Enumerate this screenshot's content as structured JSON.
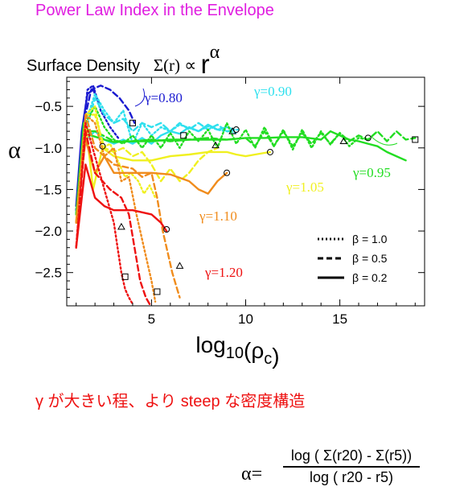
{
  "heading": "Power Law Index in the Envelope",
  "subtitle": {
    "label": "Surface Density",
    "sigma": "Σ(r) ∝ ",
    "r": "r",
    "power": "α"
  },
  "note": "γ が大きい程、より steep な密度構造",
  "formula": {
    "lhs": "α=",
    "numerator": "log ( Σ(r20) - Σ(r5))",
    "denominator": "log ( r20 - r5)"
  },
  "chart_data": {
    "type": "line",
    "xlabel": "log10(ρc)",
    "ylabel": "α",
    "xlim": [
      0.5,
      19.5
    ],
    "ylim": [
      -2.9,
      -0.15
    ],
    "xticks": [
      5,
      10,
      15
    ],
    "yticks": [
      -0.5,
      -1.0,
      -1.5,
      -2.0,
      -2.5
    ],
    "legend": {
      "placement": "bottom-right",
      "entries": [
        {
          "style": "dotted",
          "label": "β = 1.0"
        },
        {
          "style": "dashed",
          "label": "β = 0.5"
        },
        {
          "style": "solid",
          "label": "β = 0.2"
        }
      ]
    },
    "annotations": [
      {
        "text": "γ=0.80",
        "color": "#1a1ad0"
      },
      {
        "text": "γ=0.90",
        "color": "#2ee0ee"
      },
      {
        "text": "γ=0.95",
        "color": "#22dd22"
      },
      {
        "text": "γ=1.05",
        "color": "#f0f020"
      },
      {
        "text": "γ=1.10",
        "color": "#f08c1c"
      },
      {
        "text": "γ=1.20",
        "color": "#ee1111"
      }
    ],
    "series": [
      {
        "gamma": "0.80",
        "beta": "1.0",
        "style": "dotted",
        "color": "#1a1ad0",
        "x": [
          1.0,
          1.3,
          1.6,
          1.9,
          2.3,
          2.8,
          3.3
        ],
        "y": [
          -1.75,
          -0.9,
          -0.3,
          -0.25,
          -0.55,
          -0.75,
          -0.9
        ]
      },
      {
        "gamma": "0.80",
        "beta": "0.5",
        "style": "dashed",
        "color": "#1a1ad0",
        "x": [
          1.0,
          1.4,
          1.8,
          2.3,
          2.8,
          3.3,
          3.8,
          4.1
        ],
        "y": [
          -1.8,
          -0.7,
          -0.3,
          -0.25,
          -0.3,
          -0.4,
          -0.55,
          -0.7
        ]
      },
      {
        "gamma": "0.80",
        "beta": "0.2",
        "style": "solid",
        "color": "#1a1ad0",
        "x": [
          1.0,
          1.3,
          1.6,
          1.9,
          2.2
        ],
        "y": [
          -1.7,
          -0.8,
          -0.35,
          -0.3,
          -0.45
        ]
      },
      {
        "gamma": "0.90",
        "beta": "1.0",
        "style": "dotted",
        "color": "#2ee0ee",
        "x": [
          1.0,
          1.5,
          2.0,
          2.5,
          3.0,
          3.5,
          4.0,
          4.5,
          5.0,
          5.5,
          6.0,
          6.5,
          7.0,
          7.5,
          8.0,
          8.5,
          9.0,
          9.5
        ],
        "y": [
          -1.8,
          -0.7,
          -0.35,
          -0.55,
          -0.7,
          -0.55,
          -0.95,
          -0.7,
          -0.85,
          -0.75,
          -0.8,
          -0.72,
          -0.76,
          -0.8,
          -0.74,
          -0.78,
          -0.8,
          -0.82
        ]
      },
      {
        "gamma": "0.90",
        "beta": "0.5",
        "style": "dashed",
        "color": "#2ee0ee",
        "x": [
          1.0,
          1.5,
          2.0,
          2.5,
          3.0,
          3.5,
          4.0,
          4.5,
          5.0,
          5.5,
          6.0,
          6.5,
          7.0,
          7.5,
          8.0,
          8.5,
          9.0,
          9.6
        ],
        "y": [
          -1.8,
          -0.8,
          -0.4,
          -0.6,
          -0.7,
          -0.65,
          -0.8,
          -0.7,
          -0.75,
          -0.7,
          -0.8,
          -0.7,
          -0.78,
          -0.7,
          -0.78,
          -0.72,
          -0.8,
          -0.78
        ]
      },
      {
        "gamma": "0.90",
        "beta": "0.2",
        "style": "solid",
        "color": "#2ee0ee",
        "x": [
          1.0,
          1.5,
          2.0,
          2.5,
          3.0,
          3.5,
          4.0,
          4.5,
          5.0,
          5.5,
          6.0,
          6.5,
          7.0,
          7.5,
          8.0,
          8.5,
          9.0,
          9.4
        ],
        "y": [
          -1.8,
          -0.9,
          -0.8,
          -0.9,
          -0.95,
          -0.9,
          -0.95,
          -0.88,
          -0.95,
          -0.85,
          -0.8,
          -0.83,
          -0.75,
          -0.8,
          -0.72,
          -0.78,
          -0.75,
          -0.78
        ]
      },
      {
        "gamma": "0.95",
        "beta": "1.0",
        "style": "dotted",
        "color": "#22dd22",
        "x": [
          1.0,
          1.5,
          2.0,
          2.5,
          3.0,
          3.5,
          4.0,
          4.5,
          5.0,
          5.5,
          6.0,
          6.5,
          7.0,
          7.5,
          8.0,
          8.5,
          9.0,
          9.5,
          10.0,
          10.5,
          11.0,
          11.5,
          12.0,
          12.5,
          13.0,
          13.5,
          14.0,
          14.5,
          15.0,
          15.5,
          16.0,
          16.5
        ],
        "y": [
          -1.8,
          -0.7,
          -0.5,
          -0.75,
          -0.9,
          -0.95,
          -0.85,
          -1.0,
          -0.85,
          -1.0,
          -0.82,
          -1.0,
          -0.8,
          -0.92,
          -0.78,
          -1.0,
          -0.7,
          -0.95,
          -0.78,
          -1.0,
          -0.75,
          -0.98,
          -0.78,
          -1.02,
          -0.78,
          -1.0,
          -0.8,
          -0.96,
          -0.82,
          -0.98,
          -0.88,
          -0.9
        ]
      },
      {
        "gamma": "0.95",
        "beta": "0.5",
        "style": "dashed",
        "color": "#22dd22",
        "x": [
          1.0,
          1.5,
          2.0,
          3.0,
          4.0,
          5.0,
          6.0,
          7.0,
          8.0,
          9.0,
          10.0,
          10.5,
          11.0,
          11.5,
          12.0,
          12.5,
          13.0,
          13.5,
          14.0,
          14.5,
          15.0,
          15.5,
          16.0,
          16.5,
          17.0,
          17.5,
          18.0,
          18.5,
          19.0
        ],
        "y": [
          -1.8,
          -0.8,
          -0.8,
          -0.92,
          -0.92,
          -0.9,
          -0.92,
          -0.9,
          -0.88,
          -0.9,
          -0.88,
          -0.98,
          -0.8,
          -0.98,
          -0.8,
          -0.98,
          -0.82,
          -0.95,
          -0.82,
          -0.95,
          -0.82,
          -0.92,
          -0.85,
          -0.9,
          -0.8,
          -0.92,
          -0.8,
          -0.9,
          -0.88
        ]
      },
      {
        "gamma": "0.95",
        "beta": "0.2",
        "style": "solid",
        "color": "#22dd22",
        "x": [
          1.0,
          1.4,
          1.8,
          2.5,
          3.0,
          4.0,
          5.0,
          6.0,
          7.0,
          8.0,
          9.0,
          10.0,
          11.0,
          12.0,
          13.0,
          14.0,
          14.5,
          15.0,
          15.5,
          16.0,
          16.5,
          17.0,
          17.5,
          18.0,
          18.5
        ],
        "y": [
          -1.8,
          -0.7,
          -0.85,
          -0.9,
          -0.93,
          -0.92,
          -0.92,
          -0.9,
          -0.9,
          -0.9,
          -0.9,
          -0.88,
          -0.88,
          -0.87,
          -0.87,
          -0.9,
          -0.8,
          -0.85,
          -0.9,
          -0.92,
          -0.95,
          -0.98,
          -1.05,
          -1.1,
          -1.15
        ]
      },
      {
        "gamma": "1.05",
        "beta": "1.0",
        "style": "dotted",
        "color": "#f0f020",
        "x": [
          1.0,
          1.5,
          2.0,
          2.4,
          2.8,
          3.3,
          3.6,
          3.9,
          4.3,
          4.6,
          4.9,
          5.2
        ],
        "y": [
          -1.9,
          -0.6,
          -0.5,
          -1.0,
          -0.95,
          -1.2,
          -1.35,
          -1.3,
          -1.4,
          -1.55,
          -1.45,
          -1.6
        ]
      },
      {
        "gamma": "1.05",
        "beta": "0.5",
        "style": "dashed",
        "color": "#f0f020",
        "x": [
          1.0,
          1.5,
          2.0,
          2.5,
          3.0,
          3.5,
          4.0,
          4.5,
          5.0,
          5.5,
          6.0,
          6.5,
          7.0,
          7.5,
          8.0,
          8.5
        ],
        "y": [
          -1.9,
          -0.6,
          -0.6,
          -1.0,
          -1.05,
          -1.0,
          -1.1,
          -1.05,
          -1.2,
          -1.4,
          -1.25,
          -1.4,
          -1.3,
          -1.15,
          -1.05,
          -1.0
        ]
      },
      {
        "gamma": "1.05",
        "beta": "0.2",
        "style": "solid",
        "color": "#f0f020",
        "x": [
          1.0,
          1.5,
          1.9,
          2.4,
          3.0,
          4.0,
          5.0,
          6.0,
          7.0,
          8.0,
          9.0,
          9.5,
          10.0,
          10.5,
          11.0,
          11.3
        ],
        "y": [
          -1.9,
          -0.7,
          -1.5,
          -1.0,
          -1.1,
          -1.15,
          -1.15,
          -1.1,
          -1.08,
          -1.05,
          -1.05,
          -1.08,
          -1.1,
          -1.08,
          -1.06,
          -1.05
        ]
      },
      {
        "gamma": "1.10",
        "beta": "1.0",
        "style": "dotted",
        "color": "#f08c1c",
        "x": [
          1.0,
          1.5,
          2.0,
          2.5,
          3.0,
          3.4,
          3.8,
          4.2,
          4.6,
          5.0,
          5.2
        ],
        "y": [
          -1.9,
          -0.6,
          -0.7,
          -1.1,
          -1.0,
          -1.4,
          -1.35,
          -1.8,
          -2.2,
          -2.6,
          -2.85
        ]
      },
      {
        "gamma": "1.10",
        "beta": "0.5",
        "style": "dashed",
        "color": "#f08c1c",
        "x": [
          1.0,
          1.5,
          2.0,
          3.0,
          4.0,
          4.5,
          5.0,
          5.3,
          5.6,
          5.9,
          6.1,
          6.3,
          6.5
        ],
        "y": [
          -1.9,
          -0.6,
          -1.0,
          -1.2,
          -1.25,
          -1.35,
          -1.3,
          -1.6,
          -2.0,
          -2.3,
          -2.5,
          -2.65,
          -2.8
        ]
      },
      {
        "gamma": "1.10",
        "beta": "0.2",
        "style": "solid",
        "color": "#f08c1c",
        "x": [
          1.0,
          1.5,
          2.0,
          2.5,
          3.0,
          4.0,
          5.0,
          6.0,
          7.0,
          7.5,
          8.0,
          8.5,
          9.0
        ],
        "y": [
          -1.9,
          -0.9,
          -1.3,
          -1.1,
          -1.3,
          -1.3,
          -1.3,
          -1.32,
          -1.4,
          -1.5,
          -1.55,
          -1.4,
          -1.3
        ]
      },
      {
        "gamma": "1.20",
        "beta": "1.0",
        "style": "dotted",
        "color": "#ee1111",
        "x": [
          1.0,
          1.5,
          2.0,
          2.5,
          3.0,
          3.2,
          3.4,
          3.6,
          3.8,
          4.0
        ],
        "y": [
          -2.2,
          -0.7,
          -1.1,
          -1.5,
          -1.9,
          -2.2,
          -2.5,
          -2.7,
          -2.8,
          -2.88
        ]
      },
      {
        "gamma": "1.20",
        "beta": "0.5",
        "style": "dashed",
        "color": "#ee1111",
        "x": [
          1.0,
          1.5,
          2.0,
          2.8,
          3.4,
          3.8,
          4.1,
          4.4,
          4.7,
          4.9
        ],
        "y": [
          -2.2,
          -0.8,
          -1.3,
          -1.5,
          -1.6,
          -1.8,
          -2.2,
          -2.6,
          -2.8,
          -2.88
        ]
      },
      {
        "gamma": "1.20",
        "beta": "0.2",
        "style": "solid",
        "color": "#ee1111",
        "x": [
          1.0,
          1.5,
          2.0,
          2.5,
          3.0,
          4.0,
          5.0,
          5.5,
          5.8
        ],
        "y": [
          -2.2,
          -1.2,
          -1.6,
          -1.7,
          -1.75,
          -1.75,
          -1.8,
          -1.9,
          -2.0
        ]
      }
    ],
    "markers": [
      {
        "shape": "square",
        "x": 4.0,
        "y": -0.7
      },
      {
        "shape": "square",
        "x": 6.7,
        "y": -0.85
      },
      {
        "shape": "square",
        "x": 19.0,
        "y": -0.9
      },
      {
        "shape": "square",
        "x": 3.6,
        "y": -2.55
      },
      {
        "shape": "square",
        "x": 5.3,
        "y": -2.73
      },
      {
        "shape": "circle",
        "x": 2.4,
        "y": -0.98
      },
      {
        "shape": "circle",
        "x": 9.5,
        "y": -0.78
      },
      {
        "shape": "circle",
        "x": 16.5,
        "y": -0.88
      },
      {
        "shape": "circle",
        "x": 11.3,
        "y": -1.05
      },
      {
        "shape": "circle",
        "x": 9.0,
        "y": -1.3
      },
      {
        "shape": "circle",
        "x": 5.8,
        "y": -1.98
      },
      {
        "shape": "triangle",
        "x": 9.3,
        "y": -0.8
      },
      {
        "shape": "triangle",
        "x": 15.2,
        "y": -0.92
      },
      {
        "shape": "triangle",
        "x": 8.4,
        "y": -0.97
      },
      {
        "shape": "triangle",
        "x": 3.4,
        "y": -1.95
      },
      {
        "shape": "triangle",
        "x": 6.5,
        "y": -2.42
      }
    ]
  }
}
